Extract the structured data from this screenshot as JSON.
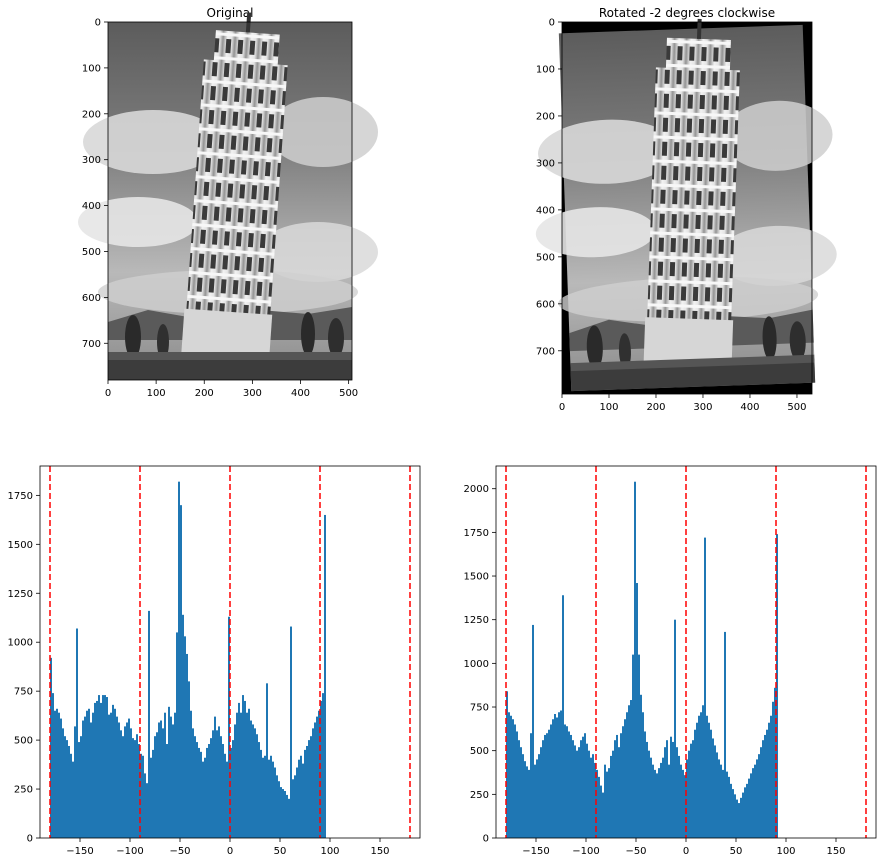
{
  "figure": {
    "subplots": [
      {
        "title": "Original",
        "kind": "image",
        "xticks": [
          "0",
          "100",
          "200",
          "300",
          "400",
          "500"
        ],
        "yticks": [
          "0",
          "100",
          "200",
          "300",
          "400",
          "500",
          "600",
          "700"
        ]
      },
      {
        "title": "Rotated -2 degrees clockwise",
        "kind": "image",
        "xticks": [
          "0",
          "100",
          "200",
          "300",
          "400",
          "500"
        ],
        "yticks": [
          "0",
          "100",
          "200",
          "300",
          "400",
          "500",
          "600",
          "700"
        ]
      }
    ]
  },
  "colors": {
    "bar": "#1f77b4",
    "ref_line": "#ff0000",
    "axis": "#000000"
  },
  "chart_data": [
    {
      "type": "bar",
      "xlim": [
        -190,
        190
      ],
      "ylim": [
        0,
        1900
      ],
      "xticks": [
        -150,
        -100,
        -50,
        0,
        50,
        100,
        150
      ],
      "yticks": [
        0,
        250,
        500,
        750,
        1000,
        1250,
        1500,
        1750
      ],
      "xtick_labels": [
        "−150",
        "−100",
        "−50",
        "0",
        "50",
        "100",
        "150"
      ],
      "ytick_labels": [
        "0",
        "250",
        "500",
        "750",
        "1000",
        "1250",
        "1500",
        "1750"
      ],
      "ref_lines_x": [
        -180,
        -90,
        0,
        90,
        180
      ],
      "bin_start": -180,
      "bin_width": 2,
      "values": [
        920,
        740,
        650,
        660,
        640,
        610,
        560,
        520,
        500,
        470,
        430,
        390,
        570,
        1070,
        490,
        520,
        600,
        620,
        650,
        660,
        590,
        640,
        690,
        700,
        730,
        690,
        730,
        730,
        720,
        630,
        640,
        680,
        660,
        620,
        590,
        550,
        520,
        570,
        590,
        610,
        560,
        510,
        500,
        530,
        480,
        430,
        420,
        330,
        280,
        1160,
        410,
        450,
        520,
        540,
        590,
        600,
        560,
        640,
        480,
        670,
        620,
        580,
        640,
        1050,
        1820,
        1700,
        1140,
        1030,
        940,
        800,
        650,
        560,
        520,
        490,
        460,
        440,
        390,
        410,
        460,
        480,
        510,
        550,
        620,
        550,
        570,
        520,
        480,
        430,
        390,
        1130,
        460,
        500,
        580,
        640,
        690,
        640,
        730,
        700,
        640,
        660,
        600,
        580,
        560,
        530,
        490,
        450,
        410,
        420,
        790,
        400,
        420,
        390,
        360,
        320,
        290,
        260,
        250,
        240,
        220,
        200,
        1080,
        300,
        320,
        360,
        400,
        420,
        380,
        450,
        470,
        500,
        520,
        560,
        590,
        620,
        650,
        700,
        740,
        1650
      ]
    },
    {
      "type": "bar",
      "xlim": [
        -190,
        190
      ],
      "ylim": [
        0,
        2130
      ],
      "xticks": [
        -150,
        -100,
        -50,
        0,
        50,
        100,
        150
      ],
      "yticks": [
        0,
        250,
        500,
        750,
        1000,
        1250,
        1500,
        1750,
        2000
      ],
      "xtick_labels": [
        "−150",
        "−100",
        "−50",
        "0",
        "50",
        "100",
        "150"
      ],
      "ytick_labels": [
        "0",
        "250",
        "500",
        "750",
        "1000",
        "1250",
        "1500",
        "1750",
        "2000"
      ],
      "ref_lines_x": [
        -180,
        -90,
        0,
        90,
        180
      ],
      "bin_start": -180,
      "bin_width": 2,
      "values": [
        840,
        720,
        700,
        680,
        650,
        610,
        560,
        520,
        480,
        440,
        410,
        390,
        600,
        1220,
        420,
        450,
        480,
        520,
        560,
        590,
        600,
        620,
        650,
        680,
        710,
        690,
        720,
        730,
        1390,
        650,
        640,
        610,
        590,
        560,
        530,
        500,
        520,
        560,
        580,
        600,
        540,
        500,
        460,
        480,
        430,
        390,
        350,
        300,
        260,
        420,
        380,
        400,
        470,
        500,
        560,
        590,
        520,
        600,
        640,
        680,
        720,
        760,
        790,
        1050,
        2040,
        1460,
        1050,
        820,
        720,
        610,
        550,
        500,
        460,
        420,
        390,
        370,
        400,
        430,
        460,
        520,
        560,
        420,
        580,
        550,
        1250,
        520,
        470,
        420,
        390,
        360,
        450,
        500,
        540,
        560,
        620,
        660,
        700,
        720,
        760,
        1720,
        700,
        660,
        620,
        570,
        530,
        490,
        450,
        420,
        390,
        1180,
        380,
        350,
        310,
        280,
        250,
        220,
        200,
        230,
        260,
        290,
        310,
        340,
        370,
        400,
        420,
        450,
        480,
        520,
        560,
        590,
        620,
        660,
        700,
        780,
        860,
        1740
      ]
    }
  ]
}
